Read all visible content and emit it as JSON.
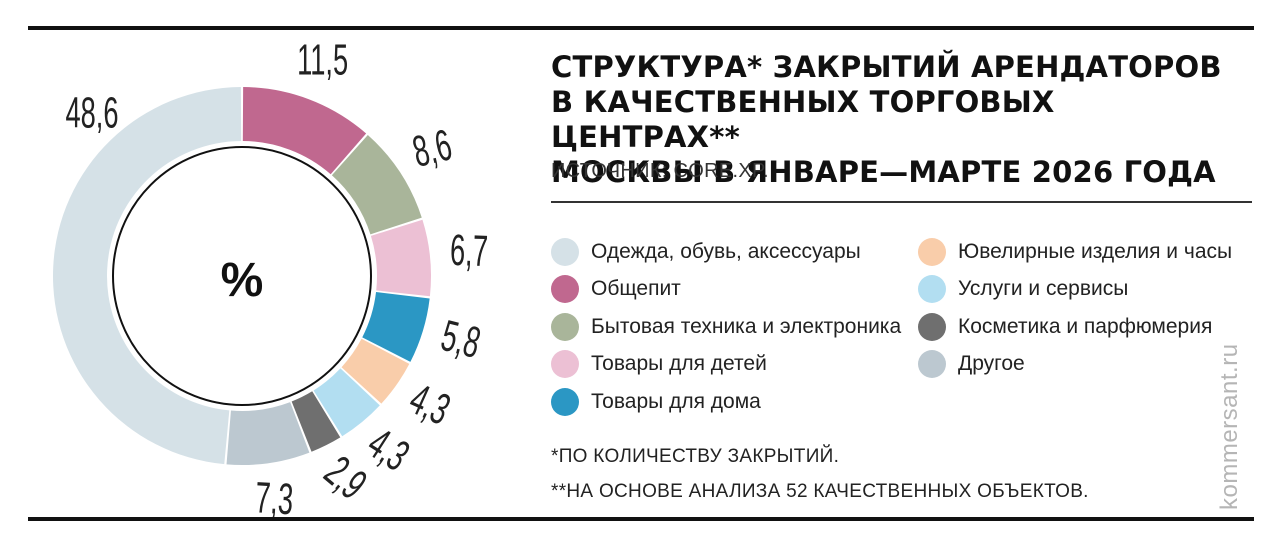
{
  "title": "СТРУКТУРА* ЗАКРЫТИЙ АРЕНДАТОРОВ\nВ КАЧЕСТВЕННЫХ ТОРГОВЫХ ЦЕНТРАХ**\nМОСКВЫ В ЯНВАРЕ—МАРТЕ 2026 ГОДА",
  "source": "ИСТОЧНИК: CORE.XP.",
  "center_label": "%",
  "notes": {
    "note1": "*ПО КОЛИЧЕСТВУ ЗАКРЫТИЙ.",
    "note2": "**НА ОСНОВЕ АНАЛИЗА 52 КАЧЕСТВЕННЫХ ОБЪЕКТОВ."
  },
  "brand": "kommersant.ru",
  "legend": {
    "left": [
      {
        "label": "Одежда, обувь, аксессуары",
        "color": "#d5e1e7"
      },
      {
        "label": "Общепит",
        "color": "#c0688f"
      },
      {
        "label": "Бытовая техника и электроника",
        "color": "#a9b59a"
      },
      {
        "label": "Товары для детей",
        "color": "#ecc0d4"
      },
      {
        "label": "Товары для дома",
        "color": "#2b97c4"
      }
    ],
    "right": [
      {
        "label": "Ювелирные изделия и часы",
        "color": "#f9cdaa"
      },
      {
        "label": "Услуги и сервисы",
        "color": "#b2def1"
      },
      {
        "label": "Косметика и парфюмерия",
        "color": "#6f6f6f"
      },
      {
        "label": "Другое",
        "color": "#bcc8d0"
      }
    ]
  },
  "chart_data": {
    "type": "pie",
    "variant": "donut",
    "unit": "%",
    "categories": [
      "Общепит",
      "Бытовая техника и электроника",
      "Товары для детей",
      "Товары для дома",
      "Ювелирные изделия и часы",
      "Услуги и сервисы",
      "Косметика и парфюмерия",
      "Другое",
      "Одежда, обувь, аксессуары"
    ],
    "values": [
      11.5,
      8.6,
      6.7,
      5.8,
      4.3,
      4.3,
      2.9,
      7.3,
      48.6
    ],
    "labels": [
      "11,5",
      "8,6",
      "6,7",
      "5,8",
      "4,3",
      "4,3",
      "2,9",
      "7,3",
      "48,6"
    ],
    "colors": [
      "#c0688f",
      "#a9b59a",
      "#ecc0d4",
      "#2b97c4",
      "#f9cdaa",
      "#b2def1",
      "#6f6f6f",
      "#bcc8d0",
      "#d5e1e7"
    ],
    "legend_position": "right"
  }
}
